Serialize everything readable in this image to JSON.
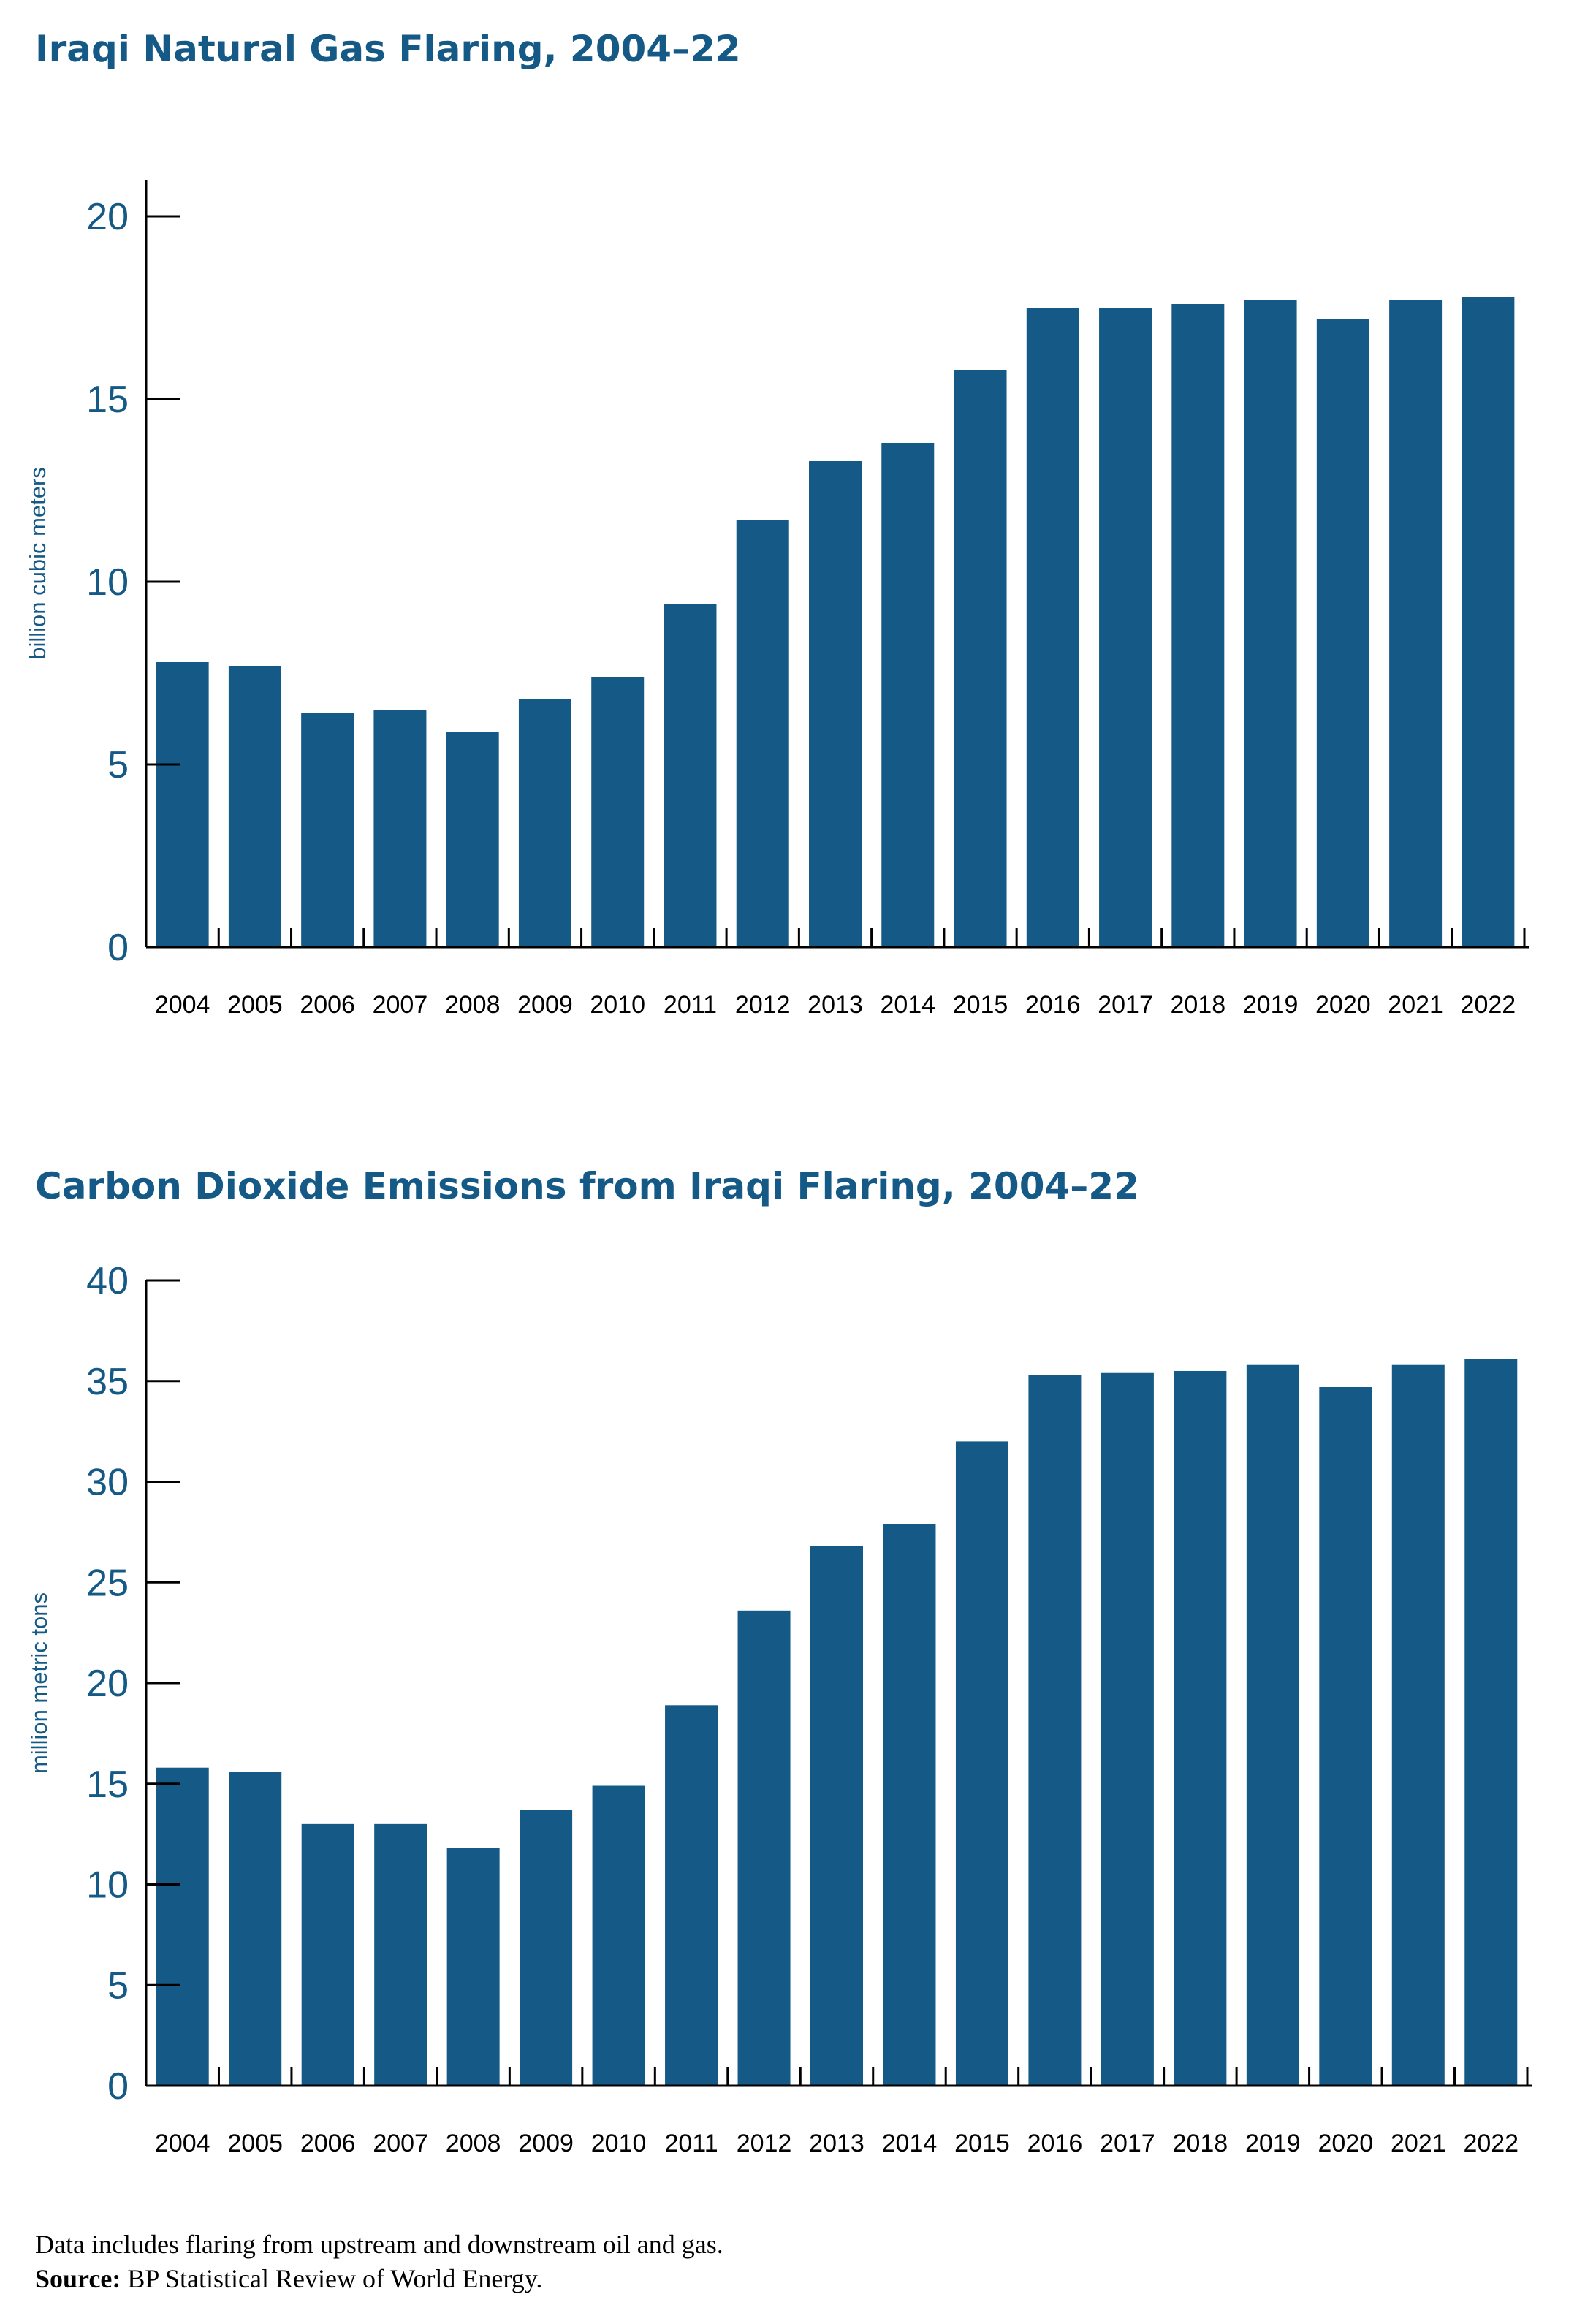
{
  "chart_data": [
    {
      "type": "bar",
      "title": "Iraqi Natural Gas Flaring, 2004–22",
      "xlabel": "",
      "ylabel": "billion cubic meters",
      "ylim": [
        0,
        20
      ],
      "yticks": [
        0,
        5,
        10,
        15,
        20
      ],
      "categories": [
        "2004",
        "2005",
        "2006",
        "2007",
        "2008",
        "2009",
        "2010",
        "2011",
        "2012",
        "2013",
        "2014",
        "2015",
        "2016",
        "2017",
        "2018",
        "2019",
        "2020",
        "2021",
        "2022"
      ],
      "values": [
        7.8,
        7.7,
        6.4,
        6.5,
        5.9,
        6.8,
        7.4,
        9.4,
        11.7,
        13.3,
        13.8,
        15.8,
        17.5,
        17.5,
        17.6,
        17.7,
        17.2,
        17.7,
        17.8
      ],
      "bar_color": "#155a86"
    },
    {
      "type": "bar",
      "title": "Carbon Dioxide Emissions from Iraqi Flaring, 2004–22",
      "xlabel": "",
      "ylabel": "million metric tons",
      "ylim": [
        0,
        40
      ],
      "yticks": [
        0,
        5,
        10,
        15,
        20,
        25,
        30,
        35,
        40
      ],
      "categories": [
        "2004",
        "2005",
        "2006",
        "2007",
        "2008",
        "2009",
        "2010",
        "2011",
        "2012",
        "2013",
        "2014",
        "2015",
        "2016",
        "2017",
        "2018",
        "2019",
        "2020",
        "2021",
        "2022"
      ],
      "values": [
        15.8,
        15.6,
        13.0,
        13.0,
        11.8,
        13.7,
        14.9,
        18.9,
        23.6,
        26.8,
        27.9,
        32.0,
        35.3,
        35.4,
        35.5,
        35.8,
        34.7,
        35.8,
        36.1
      ],
      "bar_color": "#155a86"
    }
  ],
  "footnote": {
    "text": "Data includes flaring from upstream and downstream oil and gas.",
    "source_label": "Source:",
    "source_text": " BP Statistical Review of World Energy."
  },
  "colors": {
    "accent": "#155a86",
    "axis": "#000000"
  }
}
